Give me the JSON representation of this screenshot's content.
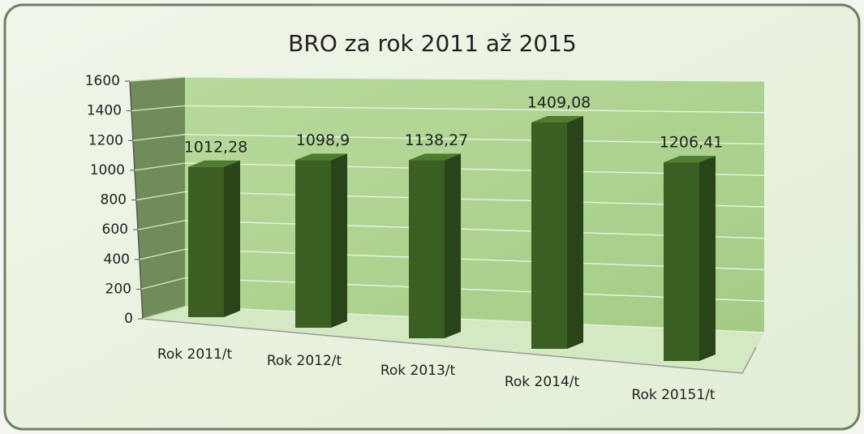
{
  "chart_data": {
    "type": "bar3d",
    "title": "BRO za rok 2011 až 2015",
    "categories": [
      "Rok 2011/t",
      "Rok 2012/t",
      "Rok  2013/t",
      "Rok 2014/t",
      "Rok 20151/t"
    ],
    "values": [
      1012.28,
      1098.9,
      1138.27,
      1409.08,
      1206.41
    ],
    "value_labels": [
      "1012,28",
      "1098,9",
      "1138,27",
      "1409,08",
      "1206,41"
    ],
    "color": "#3b5e23",
    "ylim": [
      0,
      1600
    ],
    "yticks": [
      0,
      200,
      400,
      600,
      800,
      1000,
      1200,
      1400,
      1600
    ],
    "grid": true
  }
}
